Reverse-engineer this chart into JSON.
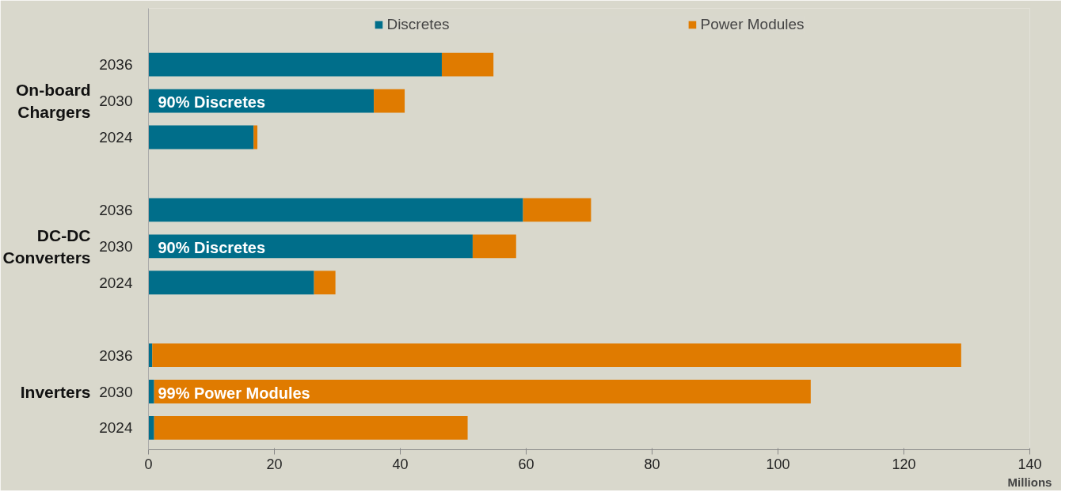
{
  "chart_data": {
    "type": "bar",
    "orientation": "horizontal",
    "stacked": true,
    "categories": [
      "2036",
      "2030",
      "2024",
      null,
      "2036",
      "2030",
      "2024",
      null,
      "2036",
      "2030",
      "2024"
    ],
    "series": [
      {
        "name": "Discretes",
        "color": "#006e8a",
        "values": [
          46.6,
          35.8,
          16.7,
          null,
          59.5,
          51.5,
          26.3,
          null,
          0.6,
          0.9,
          0.9
        ]
      },
      {
        "name": "Power Modules",
        "color": "#e07b00",
        "values": [
          8.2,
          4.9,
          0.6,
          null,
          10.8,
          6.9,
          3.4,
          null,
          128.5,
          104.3,
          49.8
        ]
      }
    ],
    "xlabel": "Millions",
    "xlim": [
      0,
      140
    ],
    "xticks": [
      0,
      20,
      40,
      60,
      80,
      100,
      120,
      140
    ],
    "annotations": [
      "On-board Chargers",
      "DC-DC Converters",
      "Inverters",
      "90% Discretes",
      "90% Discretes",
      "99% Power Modules"
    ],
    "legend": "top",
    "grid": false
  }
}
